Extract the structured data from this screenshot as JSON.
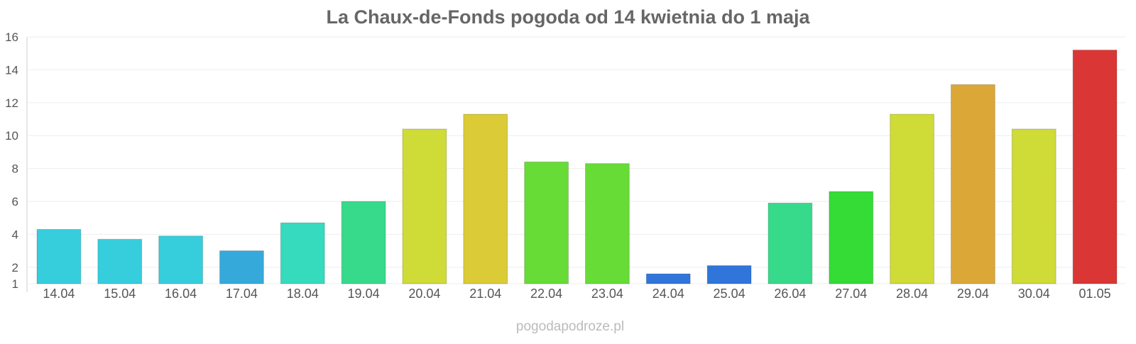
{
  "chart_data": {
    "type": "bar",
    "title": "La Chaux-de-Fonds pogoda od 14 kwietnia do 1 maja",
    "xlabel": "",
    "ylabel": "",
    "ylim": [
      1,
      16
    ],
    "yticks": [
      1,
      2,
      4,
      6,
      8,
      10,
      12,
      14,
      16
    ],
    "grid": true,
    "legend": "none",
    "categories": [
      "14.04",
      "15.04",
      "16.04",
      "17.04",
      "18.04",
      "19.04",
      "20.04",
      "21.04",
      "22.04",
      "23.04",
      "24.04",
      "25.04",
      "26.04",
      "27.04",
      "28.04",
      "29.04",
      "30.04",
      "01.05"
    ],
    "values": [
      4.3,
      3.7,
      3.9,
      3.0,
      4.7,
      6.0,
      10.4,
      11.3,
      8.4,
      8.3,
      1.6,
      2.1,
      5.9,
      6.6,
      11.3,
      13.1,
      10.4,
      15.2
    ],
    "colors": [
      "#36cddd",
      "#36cddd",
      "#36cddd",
      "#36a9db",
      "#36dabd",
      "#36da8a",
      "#cfdb36",
      "#dbcb36",
      "#68dc36",
      "#68dc36",
      "#3075da",
      "#3075da",
      "#36da8a",
      "#36dc36",
      "#cfdb36",
      "#dba736",
      "#cfdb36",
      "#da3636"
    ]
  },
  "watermark": "pogodapodroze.pl"
}
